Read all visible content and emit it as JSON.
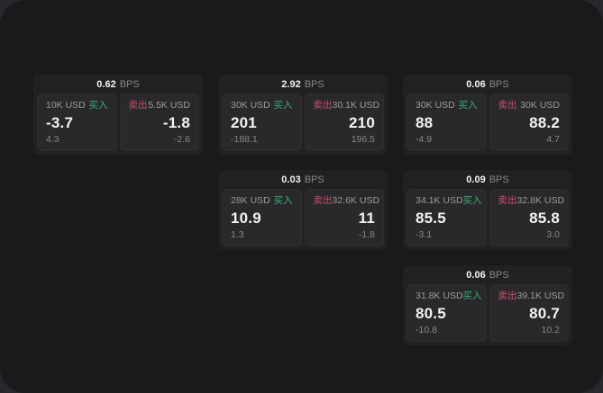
{
  "labels": {
    "buy": "买入",
    "sell": "卖出",
    "bps_unit": "BPS"
  },
  "colors": {
    "backdrop": "#27282b",
    "page_bg": "#1a1a1c",
    "card_bg": "#212124",
    "panel_bg": "#29292c",
    "buy_accent": "#3bb371",
    "sell_accent": "#cb5065",
    "value_text": "#f3f3f4",
    "muted_text": "#9b9b9e"
  },
  "cards": [
    {
      "bps": "0.62",
      "buy": {
        "amount": "10K USD",
        "value": "-3.7",
        "sub": "4.3"
      },
      "sell": {
        "amount": "5.5K USD",
        "value": "-1.8",
        "sub": "-2.6"
      }
    },
    {
      "bps": "2.92",
      "buy": {
        "amount": "30K USD",
        "value": "201",
        "sub": "-188.1"
      },
      "sell": {
        "amount": "30.1K USD",
        "value": "210",
        "sub": "196.5"
      }
    },
    {
      "bps": "0.06",
      "buy": {
        "amount": "30K USD",
        "value": "88",
        "sub": "-4.9"
      },
      "sell": {
        "amount": "30K USD",
        "value": "88.2",
        "sub": "4.7"
      }
    },
    {
      "bps": "0.03",
      "buy": {
        "amount": "28K USD",
        "value": "10.9",
        "sub": "1.3"
      },
      "sell": {
        "amount": "32.6K USD",
        "value": "11",
        "sub": "-1.8"
      }
    },
    {
      "bps": "0.09",
      "buy": {
        "amount": "34.1K USD",
        "value": "85.5",
        "sub": "-3.1"
      },
      "sell": {
        "amount": "32.8K USD",
        "value": "85.8",
        "sub": "3.0"
      }
    },
    {
      "bps": "0.06",
      "buy": {
        "amount": "31.8K USD",
        "value": "80.5",
        "sub": "-10.8"
      },
      "sell": {
        "amount": "39.1K USD",
        "value": "80.7",
        "sub": "10.2"
      }
    }
  ]
}
